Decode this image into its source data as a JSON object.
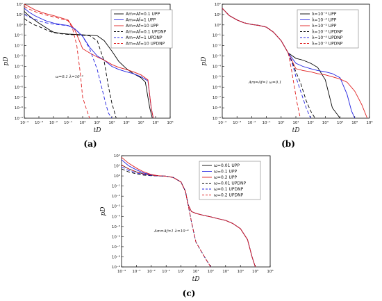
{
  "chart_data": [
    {
      "id": "a",
      "type": "line",
      "panel_label": "(a)",
      "xlabel": "tD",
      "ylabel": "pD",
      "xscale": "log",
      "yscale": "log",
      "xlim": [
        0.0001,
        1000000
      ],
      "ylim": [
        1e-09,
        100
      ],
      "xticks": [
        "10⁻⁴",
        "10⁻³",
        "10⁻²",
        "10⁻¹",
        "10⁰",
        "10¹",
        "10²",
        "10³",
        "10⁴",
        "10⁵",
        "10⁶"
      ],
      "yticks": [
        "10²",
        "10¹",
        "10⁰",
        "10⁻¹",
        "10⁻²",
        "10⁻³",
        "10⁻⁴",
        "10⁻⁵",
        "10⁻⁶",
        "10⁻⁷",
        "10⁻⁸",
        "10⁻⁹"
      ],
      "annotation": "ω=0.1 λ=10⁻⁴",
      "legend_position": "top-right",
      "series": [
        {
          "name": "Am=Af=0.1 UPP",
          "color": "#000000",
          "dash": "solid",
          "x": [
            0.0001,
            0.0002,
            0.0005,
            0.001,
            0.002,
            0.005,
            0.01,
            0.03,
            0.1,
            0.3,
            1,
            3,
            10,
            30,
            100,
            300,
            1000,
            3000,
            10000,
            20000,
            40000,
            60000
          ],
          "y": [
            20,
            8,
            3,
            1.5,
            0.8,
            0.35,
            0.2,
            0.15,
            0.13,
            0.12,
            0.11,
            0.1,
            0.09,
            0.03,
            0.003,
            0.0003,
            6e-05,
            2e-05,
            8e-06,
            3e-06,
            1e-08,
            1e-09
          ]
        },
        {
          "name": "Am=Af=1 UPP",
          "color": "#2020e0",
          "dash": "solid",
          "x": [
            0.0001,
            0.0002,
            0.0005,
            0.001,
            0.003,
            0.01,
            0.03,
            0.1,
            0.3,
            1,
            3,
            10,
            30,
            100,
            300,
            1000,
            3000,
            10000,
            30000,
            50000,
            70000
          ],
          "y": [
            40,
            18,
            8,
            5,
            2.5,
            1.5,
            1.1,
            0.9,
            0.4,
            0.08,
            0.007,
            0.001,
            0.0004,
            0.0001,
            5e-05,
            3e-05,
            2e-05,
            1e-05,
            4e-06,
            1e-08,
            1e-09
          ]
        },
        {
          "name": "Am=Af=10 UPP",
          "color": "#e02020",
          "dash": "solid",
          "x": [
            0.0001,
            0.0002,
            0.0005,
            0.001,
            0.003,
            0.01,
            0.03,
            0.1,
            0.3,
            1,
            3,
            10,
            30,
            100,
            300,
            1000,
            3000,
            10000,
            30000,
            50000,
            70000
          ],
          "y": [
            150,
            60,
            30,
            20,
            12,
            8,
            5,
            3,
            0.3,
            0.005,
            0.002,
            0.0008,
            0.0004,
            0.00015,
            8e-05,
            5e-05,
            3e-05,
            1.5e-05,
            5e-06,
            1e-08,
            1e-09
          ]
        },
        {
          "name": "Am=Af=0.1 UPDNP",
          "color": "#000000",
          "dash": "5,3",
          "x": [
            0.0001,
            0.0002,
            0.0005,
            0.001,
            0.002,
            0.005,
            0.01,
            0.03,
            0.1,
            0.3,
            1,
            3,
            10,
            30,
            60,
            100,
            200
          ],
          "y": [
            4,
            2,
            1,
            0.7,
            0.45,
            0.25,
            0.18,
            0.14,
            0.12,
            0.11,
            0.1,
            0.09,
            0.03,
            0.0003,
            1e-06,
            3e-08,
            1e-09
          ]
        },
        {
          "name": "Am=Af=1 UPDNP",
          "color": "#2020e0",
          "dash": "5,3",
          "x": [
            0.0001,
            0.0002,
            0.0005,
            0.001,
            0.003,
            0.01,
            0.03,
            0.1,
            0.3,
            1,
            3,
            10,
            20,
            40,
            60,
            100
          ],
          "y": [
            10,
            6,
            3.5,
            2.5,
            1.6,
            1.2,
            1,
            0.85,
            0.4,
            0.08,
            0.005,
            5e-05,
            1e-06,
            2e-08,
            3e-09,
            1e-09
          ]
        },
        {
          "name": "Am=Af=10 UPDNP",
          "color": "#e02020",
          "dash": "5,3",
          "x": [
            0.0001,
            0.0002,
            0.0005,
            0.001,
            0.003,
            0.01,
            0.03,
            0.1,
            0.2,
            0.4,
            0.7,
            1,
            2,
            3
          ],
          "y": [
            60,
            35,
            20,
            14,
            9,
            6,
            4,
            2.5,
            0.5,
            0.01,
            2e-05,
            1e-07,
            5e-09,
            1e-09
          ]
        }
      ]
    },
    {
      "id": "b",
      "type": "line",
      "panel_label": "(b)",
      "xlabel": "tD",
      "ylabel": "pD",
      "xscale": "log",
      "yscale": "log",
      "xlim": [
        0.0001,
        1000000
      ],
      "ylim": [
        1e-09,
        100
      ],
      "xticks": [
        "10⁻⁴",
        "10⁻³",
        "10⁻²",
        "10⁻¹",
        "10⁰",
        "10¹",
        "10²",
        "10³",
        "10⁴",
        "10⁵",
        "10⁶"
      ],
      "yticks": [
        "10²",
        "10¹",
        "10⁰",
        "10⁻¹",
        "10⁻²",
        "10⁻³",
        "10⁻⁴",
        "10⁻⁵",
        "10⁻⁶",
        "10⁻⁷",
        "10⁻⁸",
        "10⁻⁹"
      ],
      "annotation": "Am=Af=1 ω=0.1",
      "legend_position": "top-right",
      "series": [
        {
          "name": "λ=10⁻³ UPP",
          "color": "#000000",
          "dash": "solid",
          "x": [
            0.0001,
            0.0003,
            0.001,
            0.003,
            0.01,
            0.03,
            0.1,
            0.3,
            1,
            3,
            10,
            30,
            100,
            300,
            1000,
            3000,
            7000,
            10000
          ],
          "y": [
            40,
            8,
            3,
            1.6,
            1.1,
            0.9,
            0.6,
            0.2,
            0.03,
            0.002,
            0.0006,
            0.0004,
            0.0002,
            8e-05,
            5e-06,
            1e-08,
            2e-09,
            1e-09
          ]
        },
        {
          "name": "λ=10⁻⁴ UPP",
          "color": "#2020e0",
          "dash": "solid",
          "x": [
            0.0001,
            0.0003,
            0.001,
            0.003,
            0.01,
            0.03,
            0.1,
            0.3,
            1,
            3,
            10,
            30,
            100,
            300,
            1000,
            3000,
            10000,
            30000,
            60000,
            100000
          ],
          "y": [
            40,
            8,
            3,
            1.6,
            1.1,
            0.9,
            0.6,
            0.2,
            0.03,
            0.002,
            0.0002,
            0.0001,
            6e-05,
            4e-05,
            3e-05,
            2e-05,
            8e-06,
            2e-07,
            5e-09,
            1e-09
          ]
        },
        {
          "name": "λ=10⁻⁵ UPP",
          "color": "#e02020",
          "dash": "solid",
          "x": [
            0.0001,
            0.0003,
            0.001,
            0.003,
            0.01,
            0.03,
            0.1,
            0.3,
            1,
            3,
            10,
            30,
            100,
            300,
            1000,
            3000,
            10000,
            30000,
            100000,
            300000,
            700000
          ],
          "y": [
            40,
            8,
            3,
            1.6,
            1.1,
            0.9,
            0.6,
            0.2,
            0.03,
            0.002,
            6e-05,
            4e-05,
            3e-05,
            2e-05,
            1.5e-05,
            1e-05,
            6e-06,
            3e-06,
            4e-07,
            2e-08,
            1e-09
          ]
        },
        {
          "name": "λ=10⁻³ UPDNP",
          "color": "#000000",
          "dash": "5,3",
          "x": [
            0.0001,
            0.0003,
            0.001,
            0.003,
            0.01,
            0.03,
            0.1,
            0.3,
            1,
            3,
            6,
            10,
            20,
            50,
            100,
            200
          ],
          "y": [
            40,
            8,
            3,
            1.6,
            1.1,
            0.9,
            0.6,
            0.2,
            0.03,
            0.002,
            0.0002,
            3e-05,
            3e-06,
            5e-08,
            5e-09,
            1e-09
          ]
        },
        {
          "name": "λ=10⁻⁴ UPDNP",
          "color": "#2020e0",
          "dash": "5,3",
          "x": [
            0.0001,
            0.0003,
            0.001,
            0.003,
            0.01,
            0.03,
            0.1,
            0.3,
            1,
            3,
            6,
            10,
            20,
            50,
            100
          ],
          "y": [
            40,
            8,
            3,
            1.6,
            1.1,
            0.9,
            0.6,
            0.2,
            0.03,
            0.002,
            0.00015,
            1e-05,
            5e-07,
            1e-08,
            1e-09
          ]
        },
        {
          "name": "λ=10⁻⁵ UPDNP",
          "color": "#e02020",
          "dash": "5,3",
          "x": [
            0.0001,
            0.0003,
            0.001,
            0.003,
            0.01,
            0.03,
            0.1,
            0.3,
            1,
            3,
            5,
            8,
            12,
            20
          ],
          "y": [
            40,
            8,
            3,
            1.6,
            1.1,
            0.9,
            0.6,
            0.2,
            0.03,
            0.002,
            5e-05,
            1e-06,
            3e-08,
            1e-09
          ]
        }
      ]
    },
    {
      "id": "c",
      "type": "line",
      "panel_label": "(c)",
      "xlabel": "tD",
      "ylabel": "pD",
      "xscale": "log",
      "yscale": "log",
      "xlim": [
        0.0001,
        1000000
      ],
      "ylim": [
        1e-09,
        100
      ],
      "xticks": [
        "10⁻⁴",
        "10⁻³",
        "10⁻²",
        "10⁻¹",
        "10⁰",
        "10¹",
        "10²",
        "10³",
        "10⁴",
        "10⁵",
        "10⁶"
      ],
      "yticks": [
        "10²",
        "10¹",
        "10⁰",
        "10⁻¹",
        "10⁻²",
        "10⁻³",
        "10⁻⁴",
        "10⁻⁵",
        "10⁻⁶",
        "10⁻⁷",
        "10⁻⁸",
        "10⁻⁹"
      ],
      "annotation": "Am=Af=1 λ=10⁻⁴",
      "legend_position": "top-right",
      "series": [
        {
          "name": "ω=0.01 UPP",
          "color": "#000000",
          "dash": "solid",
          "x": [
            0.0001,
            0.0003,
            0.001,
            0.003,
            0.01,
            0.03,
            0.1,
            0.3,
            1,
            2,
            3,
            5,
            10,
            30,
            100,
            300,
            1000,
            3000,
            10000,
            30000,
            60000,
            100000
          ],
          "y": [
            12,
            5,
            2.5,
            1.6,
            1.2,
            1.05,
            0.95,
            0.7,
            0.25,
            0.03,
            0.0015,
            0.0003,
            0.0002,
            0.00013,
            9e-05,
            6e-05,
            4e-05,
            2e-05,
            6e-06,
            5e-07,
            1e-08,
            1e-09
          ]
        },
        {
          "name": "ω=0.1 UPP",
          "color": "#2020e0",
          "dash": "solid",
          "x": [
            0.0001,
            0.0003,
            0.001,
            0.003,
            0.01,
            0.03,
            0.1,
            0.3,
            1,
            2,
            3,
            5,
            10,
            30,
            100,
            300,
            1000,
            3000,
            10000,
            30000,
            60000,
            100000
          ],
          "y": [
            40,
            10,
            4,
            2,
            1.3,
            1.05,
            0.95,
            0.7,
            0.25,
            0.03,
            0.0015,
            0.0003,
            0.0002,
            0.00013,
            9e-05,
            6e-05,
            4e-05,
            2e-05,
            6e-06,
            5e-07,
            1e-08,
            1e-09
          ]
        },
        {
          "name": "ω=0.2 UPP",
          "color": "#e02020",
          "dash": "solid",
          "x": [
            0.0001,
            0.0003,
            0.001,
            0.003,
            0.01,
            0.03,
            0.1,
            0.3,
            1,
            2,
            3,
            5,
            10,
            30,
            100,
            300,
            1000,
            3000,
            10000,
            30000,
            60000,
            100000
          ],
          "y": [
            70,
            18,
            6,
            2.6,
            1.4,
            1.05,
            0.95,
            0.7,
            0.25,
            0.03,
            0.0015,
            0.0003,
            0.0002,
            0.00013,
            9e-05,
            6e-05,
            4e-05,
            2e-05,
            6e-06,
            5e-07,
            1e-08,
            1e-09
          ]
        },
        {
          "name": "ω=0.01 UPDNP",
          "color": "#000000",
          "dash": "5,3",
          "x": [
            0.0001,
            0.0003,
            0.001,
            0.003,
            0.01,
            0.03,
            0.1,
            0.3,
            1,
            2,
            3,
            5,
            10,
            20,
            50,
            100
          ],
          "y": [
            5,
            2.5,
            1.6,
            1.2,
            1.05,
            1,
            0.95,
            0.7,
            0.25,
            0.03,
            0.0015,
            3e-05,
            3e-07,
            5e-08,
            5e-09,
            1e-09
          ]
        },
        {
          "name": "ω=0.1 UPDNP",
          "color": "#2020e0",
          "dash": "5,3",
          "x": [
            0.0001,
            0.0003,
            0.001,
            0.003,
            0.01,
            0.03,
            0.1,
            0.3,
            1,
            2,
            3,
            5,
            10,
            20,
            50,
            100
          ],
          "y": [
            8,
            3.5,
            2,
            1.4,
            1.1,
            1,
            0.95,
            0.7,
            0.25,
            0.03,
            0.0015,
            3e-05,
            3e-07,
            5e-08,
            5e-09,
            1e-09
          ]
        },
        {
          "name": "ω=0.2 UPDNP",
          "color": "#e02020",
          "dash": "5,3",
          "x": [
            0.0001,
            0.0003,
            0.001,
            0.003,
            0.01,
            0.03,
            0.1,
            0.3,
            1,
            2,
            3,
            5,
            10,
            20,
            50,
            100
          ],
          "y": [
            12,
            5,
            2.5,
            1.6,
            1.2,
            1.05,
            0.95,
            0.7,
            0.25,
            0.03,
            0.0015,
            3e-05,
            3e-07,
            5e-08,
            5e-09,
            1e-09
          ]
        }
      ]
    }
  ]
}
